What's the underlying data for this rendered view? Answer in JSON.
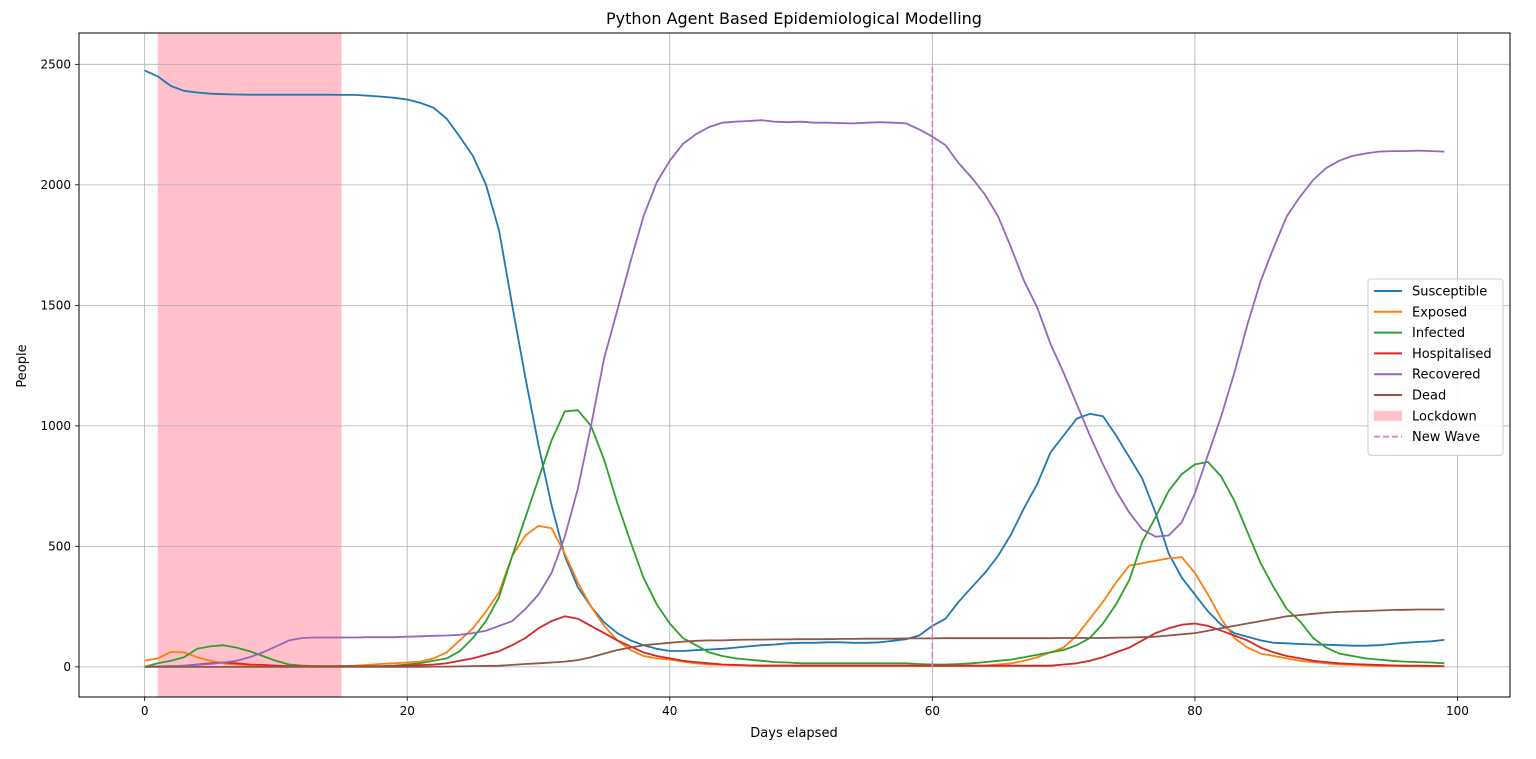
{
  "chart_data": {
    "type": "line",
    "title": "Python Agent Based Epidemiological Modelling",
    "xlabel": "Days elapsed",
    "ylabel": "People",
    "xlim": [
      -5,
      104
    ],
    "ylim": [
      -125,
      2630
    ],
    "x_ticks": [
      0,
      20,
      40,
      60,
      80,
      100
    ],
    "y_ticks": [
      0,
      500,
      1000,
      1500,
      2000,
      2500
    ],
    "grid": true,
    "legend_position": "center right",
    "lockdown": {
      "label": "Lockdown",
      "start": 1,
      "end": 15,
      "color": "#ffc0cb"
    },
    "new_wave": {
      "label": "New Wave",
      "x": 60,
      "y_start": 0,
      "y_end": 2500,
      "color": "#e377c2"
    },
    "x_start": 0,
    "series": [
      {
        "name": "Susceptible",
        "color": "#1f77b4",
        "values": [
          2475,
          2450,
          2410,
          2390,
          2383,
          2378,
          2376,
          2375,
          2374,
          2374,
          2374,
          2374,
          2374,
          2374,
          2374,
          2373,
          2373,
          2370,
          2366,
          2361,
          2354,
          2340,
          2320,
          2275,
          2200,
          2120,
          2000,
          1810,
          1500,
          1200,
          920,
          670,
          460,
          330,
          250,
          185,
          140,
          110,
          90,
          75,
          66,
          66,
          69,
          72,
          75,
          80,
          85,
          90,
          93,
          98,
          100,
          100,
          102,
          102,
          100,
          100,
          102,
          108,
          115,
          130,
          170,
          200,
          270,
          330,
          390,
          460,
          550,
          660,
          760,
          890,
          960,
          1030,
          1050,
          1040,
          960,
          870,
          780,
          640,
          470,
          370,
          300,
          230,
          175,
          140,
          125,
          110,
          100,
          98,
          95,
          93,
          92,
          90,
          88,
          88,
          90,
          95,
          100,
          103,
          106,
          112
        ]
      },
      {
        "name": "Exposed",
        "color": "#ff7f0e",
        "values": [
          25,
          35,
          62,
          60,
          40,
          25,
          15,
          10,
          7,
          5,
          4,
          3,
          3,
          3,
          3,
          3,
          5,
          8,
          12,
          15,
          18,
          22,
          35,
          60,
          110,
          160,
          230,
          310,
          460,
          545,
          585,
          575,
          470,
          350,
          250,
          170,
          110,
          70,
          45,
          35,
          30,
          22,
          15,
          10,
          8,
          7,
          6,
          6,
          6,
          6,
          5,
          5,
          5,
          5,
          5,
          5,
          5,
          5,
          5,
          5,
          5,
          5,
          5,
          5,
          5,
          10,
          15,
          25,
          40,
          60,
          80,
          130,
          200,
          270,
          350,
          420,
          430,
          440,
          450,
          455,
          390,
          300,
          200,
          120,
          80,
          55,
          45,
          35,
          25,
          20,
          15,
          10,
          8,
          6,
          5,
          4,
          3,
          2,
          2,
          2
        ]
      },
      {
        "name": "Infected",
        "color": "#2ca02c",
        "values": [
          0,
          15,
          25,
          40,
          75,
          85,
          90,
          80,
          65,
          45,
          25,
          10,
          5,
          3,
          3,
          3,
          3,
          3,
          3,
          5,
          10,
          15,
          25,
          35,
          65,
          120,
          190,
          290,
          460,
          620,
          780,
          940,
          1060,
          1065,
          1000,
          860,
          680,
          520,
          370,
          260,
          180,
          120,
          90,
          60,
          45,
          35,
          30,
          25,
          20,
          18,
          15,
          15,
          15,
          15,
          15,
          15,
          15,
          15,
          15,
          12,
          10,
          10,
          12,
          15,
          20,
          25,
          30,
          40,
          50,
          60,
          70,
          90,
          120,
          180,
          260,
          360,
          520,
          620,
          730,
          800,
          840,
          850,
          790,
          690,
          560,
          430,
          330,
          240,
          190,
          120,
          80,
          55,
          45,
          35,
          30,
          25,
          22,
          20,
          18,
          15
        ]
      },
      {
        "name": "Hospitalised",
        "color": "#d62728",
        "values": [
          0,
          2,
          3,
          5,
          10,
          15,
          18,
          15,
          10,
          8,
          5,
          3,
          2,
          2,
          2,
          2,
          2,
          2,
          2,
          3,
          5,
          7,
          10,
          15,
          25,
          35,
          50,
          65,
          90,
          120,
          160,
          190,
          210,
          200,
          170,
          140,
          110,
          85,
          60,
          45,
          35,
          25,
          20,
          15,
          10,
          8,
          6,
          5,
          5,
          5,
          5,
          5,
          5,
          5,
          5,
          5,
          5,
          5,
          5,
          5,
          5,
          5,
          5,
          5,
          5,
          5,
          5,
          5,
          5,
          5,
          10,
          15,
          25,
          40,
          60,
          80,
          110,
          140,
          160,
          175,
          180,
          170,
          150,
          130,
          110,
          80,
          60,
          45,
          35,
          25,
          20,
          15,
          12,
          10,
          8,
          6,
          5,
          5,
          4,
          3
        ]
      },
      {
        "name": "Recovered",
        "color": "#9467bd",
        "values": [
          0,
          2,
          3,
          5,
          8,
          12,
          18,
          25,
          40,
          60,
          85,
          110,
          120,
          122,
          122,
          122,
          122,
          123,
          123,
          123,
          125,
          127,
          129,
          130,
          133,
          140,
          150,
          170,
          190,
          240,
          300,
          390,
          540,
          740,
          1000,
          1280,
          1480,
          1680,
          1870,
          2010,
          2100,
          2170,
          2210,
          2240,
          2258,
          2262,
          2265,
          2268,
          2262,
          2260,
          2262,
          2258,
          2258,
          2256,
          2255,
          2258,
          2260,
          2258,
          2255,
          2230,
          2200,
          2165,
          2090,
          2030,
          1960,
          1870,
          1740,
          1600,
          1490,
          1340,
          1220,
          1090,
          960,
          840,
          730,
          640,
          570,
          540,
          545,
          600,
          720,
          880,
          1040,
          1220,
          1420,
          1600,
          1740,
          1870,
          1950,
          2020,
          2070,
          2100,
          2120,
          2130,
          2138,
          2140,
          2140,
          2142,
          2140,
          2138
        ]
      },
      {
        "name": "Dead",
        "color": "#8c564b",
        "values": [
          0,
          0,
          0,
          0,
          0,
          0,
          0,
          0,
          0,
          0,
          0,
          0,
          0,
          0,
          0,
          0,
          0,
          0,
          0,
          0,
          0,
          0,
          1,
          1,
          2,
          3,
          4,
          5,
          8,
          12,
          15,
          18,
          22,
          28,
          40,
          55,
          70,
          80,
          90,
          95,
          100,
          105,
          108,
          110,
          110,
          112,
          113,
          113,
          114,
          114,
          115,
          115,
          115,
          116,
          116,
          117,
          117,
          117,
          118,
          118,
          118,
          119,
          119,
          119,
          119,
          119,
          119,
          119,
          119,
          119,
          120,
          120,
          120,
          120,
          121,
          122,
          123,
          125,
          130,
          135,
          140,
          150,
          160,
          170,
          180,
          190,
          200,
          210,
          215,
          220,
          225,
          228,
          230,
          232,
          234,
          236,
          237,
          238,
          238,
          238
        ]
      }
    ]
  }
}
